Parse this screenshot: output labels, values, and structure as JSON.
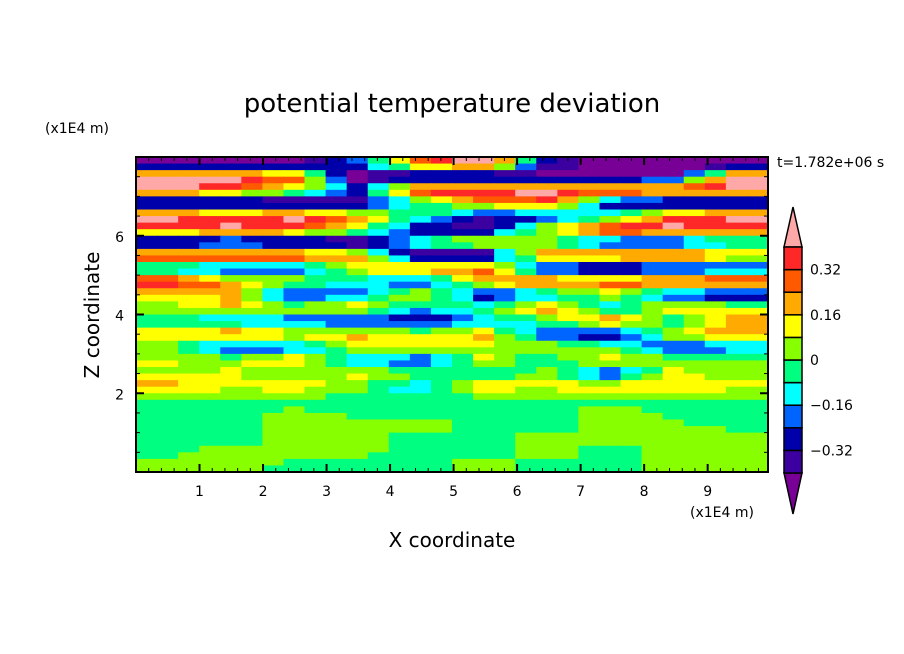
{
  "chart_data": {
    "type": "heatmap",
    "title": "potential temperature deviation",
    "xlabel": "X coordinate",
    "ylabel": "Z coordinate",
    "x_unit_label": "(x1E4 m)",
    "y_unit_label": "(x1E4 m)",
    "time_label": "t=1.782e+06 s",
    "xlim": [
      0,
      9.95
    ],
    "ylim": [
      0,
      8
    ],
    "x_ticks": [
      1,
      2,
      3,
      4,
      5,
      6,
      7,
      8,
      9
    ],
    "y_ticks": [
      2,
      4,
      6
    ],
    "x_minor_step": 0.2,
    "y_minor_step": 0.5,
    "grid": false,
    "colorbar": {
      "placement": "right",
      "levels": [
        -0.4,
        -0.32,
        -0.24,
        -0.16,
        -0.08,
        0,
        0.08,
        0.16,
        0.24,
        0.32,
        0.4
      ],
      "tick_labels": [
        "0.32",
        "0.16",
        "0",
        "−0.16",
        "−0.32"
      ],
      "tick_values": [
        0.32,
        0.16,
        0,
        -0.16,
        -0.32
      ],
      "colors_low_to_high": [
        "#780096",
        "#3c00a0",
        "#0000aa",
        "#0064ff",
        "#00ffff",
        "#00ff80",
        "#88ff00",
        "#ffff00",
        "#ffaa00",
        "#ff5a00",
        "#ff2828",
        "#ffa8a8"
      ],
      "extend": "both"
    },
    "grid_x_centers": [
      0.5,
      1.5,
      2.5,
      3.5,
      4.5,
      5.5,
      6.5,
      7.5,
      8.5,
      9.5
    ],
    "grid_z_rows_top_to_bottom_step": 0.3333,
    "values_top_to_bottom": [
      [
        -0.5,
        -0.5,
        -0.5,
        -0.2,
        0.3,
        0.45,
        -0.3,
        -0.5,
        -0.5,
        -0.5
      ],
      [
        0.45,
        0.45,
        0.3,
        -0.5,
        -0.5,
        -0.5,
        -0.5,
        -0.5,
        -0.45,
        0.45
      ],
      [
        0.45,
        0.3,
        0.1,
        -0.2,
        0.45,
        0.45,
        0.45,
        0.45,
        0.45,
        0.45
      ],
      [
        -0.5,
        -0.5,
        -0.5,
        -0.4,
        -0.1,
        0.2,
        0.3,
        -0.3,
        -0.5,
        -0.5
      ],
      [
        0.45,
        0.3,
        0.45,
        0.2,
        0.0,
        -0.3,
        -0.3,
        -0.1,
        0.3,
        0.45
      ],
      [
        0.3,
        0.45,
        0.35,
        0.1,
        -0.35,
        -0.4,
        0.1,
        0.45,
        0.45,
        0.3
      ],
      [
        -0.5,
        -0.45,
        -0.5,
        -0.5,
        0.0,
        0.2,
        0.0,
        -0.35,
        -0.45,
        -0.1
      ],
      [
        0.45,
        0.45,
        0.45,
        0.2,
        -0.5,
        -0.5,
        0.3,
        0.35,
        0.45,
        0.2
      ],
      [
        -0.2,
        -0.35,
        -0.3,
        0.1,
        0.3,
        0.3,
        -0.35,
        -0.5,
        -0.4,
        -0.3
      ],
      [
        0.4,
        0.2,
        0.1,
        -0.1,
        -0.3,
        0.2,
        0.35,
        0.3,
        0.4,
        0.45
      ],
      [
        0.1,
        0.2,
        -0.35,
        -0.2,
        0.1,
        -0.35,
        -0.2,
        0.1,
        -0.3,
        -0.4
      ],
      [
        0.05,
        0.15,
        0.1,
        0.2,
        -0.1,
        0.0,
        0.25,
        -0.2,
        0.2,
        0.1
      ],
      [
        -0.1,
        -0.2,
        -0.25,
        -0.3,
        -0.35,
        -0.2,
        0.0,
        0.3,
        -0.1,
        0.2
      ],
      [
        0.2,
        0.3,
        0.15,
        0.2,
        0.1,
        0.2,
        -0.3,
        -0.35,
        0.1,
        0.25
      ],
      [
        0.0,
        -0.3,
        -0.25,
        0.05,
        0.15,
        0.05,
        0.1,
        0.0,
        -0.3,
        -0.2
      ],
      [
        0.1,
        0.05,
        0.2,
        -0.15,
        -0.3,
        0.1,
        -0.1,
        0.15,
        0.05,
        0.0
      ],
      [
        0.05,
        0.1,
        0.0,
        0.1,
        0.05,
        -0.1,
        0.05,
        -0.3,
        0.1,
        0.05
      ],
      [
        0.2,
        0.1,
        0.15,
        0.05,
        -0.2,
        0.15,
        0.1,
        0.2,
        0.15,
        0.1
      ],
      [
        -0.03,
        -0.03,
        -0.03,
        -0.03,
        -0.03,
        -0.03,
        -0.03,
        -0.03,
        -0.03,
        -0.03
      ],
      [
        -0.03,
        -0.03,
        0.03,
        -0.03,
        -0.03,
        -0.03,
        -0.03,
        0.03,
        -0.03,
        -0.03
      ],
      [
        -0.03,
        -0.03,
        0.03,
        0.03,
        0.03,
        -0.03,
        -0.03,
        0.03,
        0.03,
        -0.03
      ],
      [
        -0.03,
        -0.03,
        0.03,
        0.03,
        -0.03,
        -0.03,
        0.03,
        0.03,
        0.03,
        0.03
      ],
      [
        -0.03,
        0.03,
        0.03,
        0.03,
        -0.03,
        -0.03,
        0.03,
        -0.03,
        0.03,
        0.03
      ],
      [
        0.03,
        0.03,
        -0.03,
        -0.03,
        -0.03,
        0.03,
        -0.03,
        -0.03,
        0.03,
        0.03
      ]
    ]
  }
}
